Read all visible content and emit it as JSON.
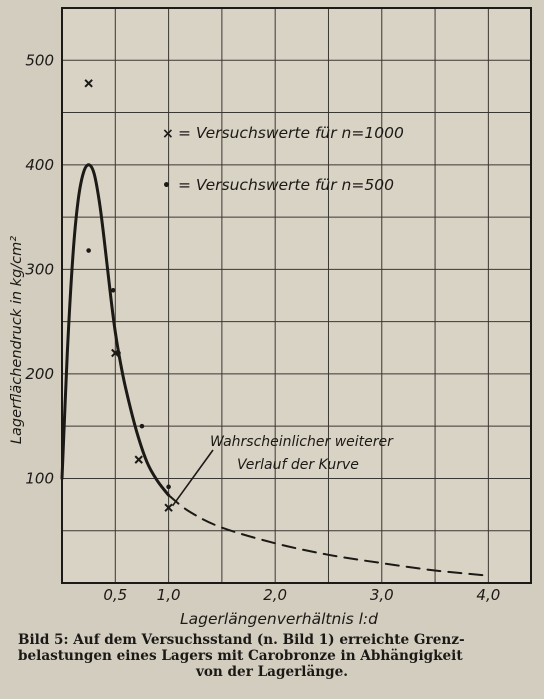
{
  "chart_data": {
    "type": "line",
    "xlabel": "Lagerlängenverhältnis  l:d",
    "ylabel": "Lagerflächendruck  in  kg/cm²",
    "x_ticks": [
      {
        "value": 0.5,
        "label": "0,5"
      },
      {
        "value": 1.0,
        "label": "1,0"
      },
      {
        "value": 2.0,
        "label": "2,0"
      },
      {
        "value": 3.0,
        "label": "3,0"
      },
      {
        "value": 4.0,
        "label": "4,0"
      }
    ],
    "y_ticks": [
      {
        "value": 100,
        "label": "100"
      },
      {
        "value": 200,
        "label": "200"
      },
      {
        "value": 300,
        "label": "300"
      },
      {
        "value": 400,
        "label": "400"
      },
      {
        "value": 500,
        "label": "500"
      }
    ],
    "xlim": [
      0.0,
      4.4
    ],
    "ylim": [
      0,
      550
    ],
    "grid": true,
    "legend": [
      {
        "marker": "×",
        "text": "= Versuchswerte  für  n=1000"
      },
      {
        "marker": "•",
        "text": "= Versuchswerte  für  n=500"
      }
    ],
    "series": [
      {
        "style": "solid",
        "points": [
          [
            0.0,
            100
          ],
          [
            0.05,
            220
          ],
          [
            0.1,
            310
          ],
          [
            0.15,
            365
          ],
          [
            0.2,
            392
          ],
          [
            0.25,
            400
          ],
          [
            0.3,
            392
          ],
          [
            0.35,
            365
          ],
          [
            0.4,
            325
          ],
          [
            0.45,
            280
          ],
          [
            0.5,
            240
          ],
          [
            0.55,
            210
          ],
          [
            0.6,
            185
          ],
          [
            0.7,
            145
          ],
          [
            0.8,
            115
          ],
          [
            0.9,
            97
          ],
          [
            1.0,
            84
          ]
        ]
      },
      {
        "style": "dashed",
        "points": [
          [
            1.0,
            84
          ],
          [
            1.2,
            68
          ],
          [
            1.5,
            53
          ],
          [
            2.0,
            38
          ],
          [
            2.5,
            27
          ],
          [
            3.0,
            19
          ],
          [
            3.5,
            12
          ],
          [
            4.0,
            7
          ]
        ]
      }
    ],
    "scatter": [
      {
        "marker": "x",
        "points": [
          [
            0.25,
            478
          ],
          [
            0.5,
            220
          ],
          [
            0.72,
            118
          ],
          [
            1.0,
            72
          ]
        ]
      },
      {
        "marker": "dot",
        "points": [
          [
            0.25,
            318
          ],
          [
            0.48,
            280
          ],
          [
            0.53,
            220
          ],
          [
            0.75,
            150
          ],
          [
            1.0,
            92
          ]
        ]
      }
    ],
    "annotation": {
      "lines": [
        "Wahrscheinlicher  weiterer",
        "Verlauf  der  Kurve"
      ],
      "arrow_to": [
        1.0,
        70
      ]
    }
  },
  "caption": {
    "line1": "Bild 5: Auf dem Versuchsstand (n. Bild 1) erreichte Grenz-",
    "line2": "belastungen eines Lagers mit Carobronze in Abhängigkeit",
    "line3": "von der Lagerlänge."
  }
}
